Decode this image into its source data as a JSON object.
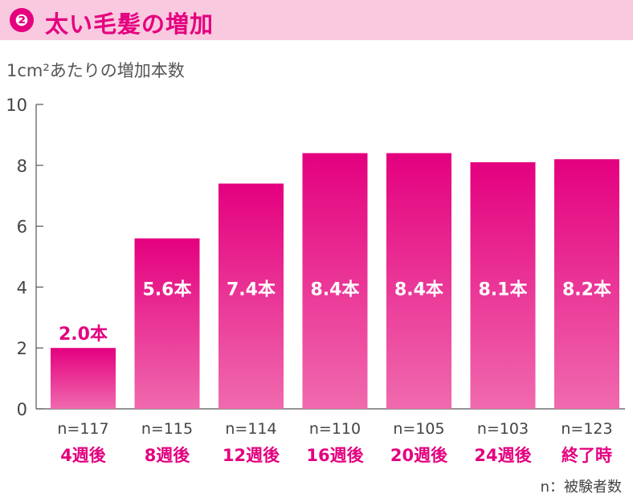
{
  "header": {
    "badge": "❷",
    "title": "太い毛髪の増加"
  },
  "unit_label": "1cm²あたりの増加本数",
  "footnote": "n：被験者数",
  "colors": {
    "accent": "#e4007f",
    "header_bg": "#f9c9df",
    "bar_top": "#e4007f",
    "bar_bottom": "#f06aae"
  },
  "chart_data": {
    "type": "bar",
    "ylim": [
      0,
      10
    ],
    "yticks": [
      "0",
      "2",
      "4",
      "6",
      "8",
      "10"
    ],
    "categories": [
      "4週後",
      "8週後",
      "12週後",
      "16週後",
      "20週後",
      "24週後",
      "終了時"
    ],
    "n_labels": [
      "n=117",
      "n=115",
      "n=114",
      "n=110",
      "n=105",
      "n=103",
      "n=123"
    ],
    "values": [
      2.0,
      5.6,
      7.4,
      8.4,
      8.4,
      8.1,
      8.2
    ],
    "data_labels": [
      "2.0本",
      "5.6本",
      "7.4本",
      "8.4本",
      "8.4本",
      "8.1本",
      "8.2本"
    ],
    "grid": false
  }
}
